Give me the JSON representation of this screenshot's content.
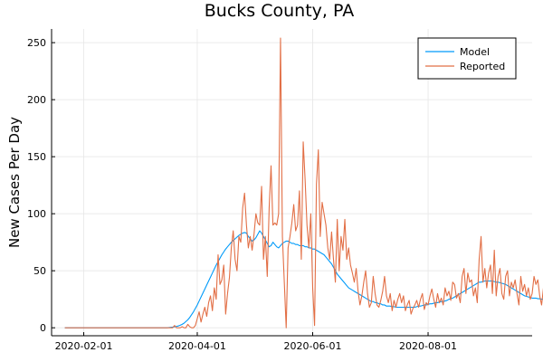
{
  "chart_data": {
    "type": "line",
    "title": "Bucks County, PA",
    "xlabel": "",
    "ylabel": "New Cases Per Day",
    "x_start": "2020-01-22",
    "x_end": "2020-09-21",
    "xlim": [
      "2020-01-15",
      "2020-09-25"
    ],
    "ylim": [
      -7,
      262
    ],
    "x_ticks": [
      {
        "date": "2020-02-01",
        "label": "2020-02-01"
      },
      {
        "date": "2020-04-01",
        "label": "2020-04-01"
      },
      {
        "date": "2020-06-01",
        "label": "2020-06-01"
      },
      {
        "date": "2020-08-01",
        "label": "2020-08-01"
      }
    ],
    "y_ticks": [
      0,
      50,
      100,
      150,
      200,
      250
    ],
    "grid": true,
    "legend": "top-right",
    "series": [
      {
        "name": "Model",
        "color": "#009af9",
        "values": [
          0,
          0,
          0,
          0,
          0,
          0,
          0,
          0,
          0,
          0,
          0,
          0,
          0,
          0,
          0,
          0,
          0,
          0,
          0,
          0,
          0,
          0,
          0,
          0,
          0,
          0,
          0,
          0,
          0,
          0,
          0,
          0,
          0,
          0,
          0,
          0,
          0,
          0,
          0,
          0,
          0,
          0,
          0,
          0,
          0,
          0,
          0,
          0,
          0,
          0,
          0,
          0,
          0,
          0,
          0,
          0.2,
          0.4,
          0.6,
          0.9,
          1.2,
          1.6,
          2.2,
          3,
          4,
          5.5,
          7,
          9,
          11.5,
          14,
          17,
          20,
          23.5,
          27,
          30.5,
          34,
          37.5,
          41,
          44.5,
          48,
          51.5,
          55,
          58,
          61,
          64,
          66.5,
          69,
          71,
          73,
          75,
          76.5,
          78,
          79.5,
          81,
          82,
          83,
          83.5,
          83,
          80,
          78,
          76,
          77,
          79,
          82,
          85,
          83,
          80,
          77,
          74,
          71,
          72,
          75,
          73,
          71,
          70,
          72,
          74,
          75,
          76,
          76,
          75,
          74,
          74,
          73,
          73,
          72,
          72,
          72,
          71,
          71,
          70,
          70,
          69,
          69,
          68,
          67,
          66,
          65,
          64,
          62,
          60,
          58,
          56,
          53,
          50,
          47,
          45,
          43,
          41,
          39,
          37,
          35,
          34,
          33,
          32,
          31,
          30,
          29,
          28,
          27,
          26,
          25,
          24,
          23,
          23,
          22,
          22,
          21,
          21,
          20,
          20,
          19,
          19,
          19,
          18.5,
          18.5,
          18,
          18,
          18,
          18,
          18,
          18,
          18,
          18,
          18,
          18,
          18,
          18.5,
          19,
          19,
          19.5,
          20,
          20,
          20.5,
          21,
          21,
          21.5,
          22,
          22,
          22.5,
          23,
          23,
          23.5,
          24,
          25,
          25.5,
          26,
          27,
          28,
          29,
          30,
          31,
          32,
          33,
          34,
          35,
          36,
          37,
          38,
          39,
          40,
          40,
          40.5,
          41,
          41,
          41,
          41,
          41,
          40.5,
          40,
          40,
          39.5,
          39,
          38.5,
          38,
          37,
          36,
          35,
          34,
          33,
          32,
          31,
          30,
          29,
          28,
          27.5,
          27,
          26.5,
          26,
          26,
          26,
          25.5,
          25.5,
          25,
          25,
          25,
          25,
          25,
          25,
          25,
          25,
          25,
          25,
          25,
          25.5,
          26,
          26.5,
          27,
          28,
          29,
          30,
          31,
          31.5,
          32,
          32.5,
          32,
          31.5,
          31,
          31,
          30.5,
          30,
          30,
          30,
          30,
          30,
          30,
          29.5,
          29,
          29,
          29
        ]
      },
      {
        "name": "Reported",
        "color": "#e26f46",
        "values": [
          0,
          0,
          0,
          0,
          0,
          0,
          0,
          0,
          0,
          0,
          0,
          0,
          0,
          0,
          0,
          0,
          0,
          0,
          0,
          0,
          0,
          0,
          0,
          0,
          0,
          0,
          0,
          0,
          0,
          0,
          0,
          0,
          0,
          0,
          0,
          0,
          0,
          0,
          0,
          0,
          0,
          0,
          0,
          0,
          0,
          0,
          0,
          0,
          0,
          0,
          0,
          0,
          0,
          0,
          0,
          0,
          0,
          0,
          2,
          0,
          0,
          0,
          1,
          0,
          0,
          3,
          1,
          0,
          0,
          2,
          8,
          14,
          5,
          12,
          18,
          10,
          22,
          28,
          15,
          35,
          25,
          64,
          38,
          42,
          55,
          12,
          30,
          44,
          70,
          85,
          60,
          50,
          80,
          75,
          105,
          118,
          90,
          70,
          80,
          68,
          82,
          100,
          92,
          90,
          124,
          60,
          80,
          45,
          105,
          142,
          90,
          92,
          90,
          100,
          254,
          80,
          40,
          0,
          70,
          80,
          92,
          108,
          85,
          90,
          120,
          60,
          163,
          130,
          90,
          70,
          100,
          35,
          2,
          126,
          156,
          80,
          110,
          100,
          90,
          70,
          60,
          84,
          60,
          40,
          95,
          50,
          80,
          68,
          95,
          60,
          70,
          55,
          48,
          40,
          52,
          32,
          20,
          28,
          40,
          50,
          30,
          18,
          22,
          45,
          30,
          20,
          18,
          24,
          32,
          45,
          28,
          22,
          30,
          15,
          24,
          18,
          25,
          30,
          22,
          28,
          15,
          20,
          24,
          12,
          17,
          20,
          24,
          18,
          25,
          30,
          16,
          22,
          20,
          28,
          34,
          25,
          18,
          30,
          22,
          26,
          20,
          35,
          28,
          32,
          24,
          40,
          38,
          26,
          30,
          22,
          45,
          52,
          30,
          48,
          40,
          42,
          28,
          35,
          22,
          60,
          80,
          40,
          52,
          35,
          48,
          55,
          30,
          68,
          28,
          45,
          52,
          30,
          25,
          45,
          50,
          28,
          40,
          35,
          42,
          30,
          20,
          45,
          32,
          38,
          28,
          35,
          25,
          30,
          45,
          38,
          42,
          28,
          20,
          35,
          30,
          40,
          24,
          30,
          28,
          42,
          35,
          20,
          28,
          45,
          38,
          25,
          62,
          40,
          22,
          35,
          50,
          30,
          32,
          25,
          48,
          20,
          30,
          52,
          28,
          35,
          10,
          55,
          38,
          52,
          40,
          35
        ]
      }
    ]
  }
}
